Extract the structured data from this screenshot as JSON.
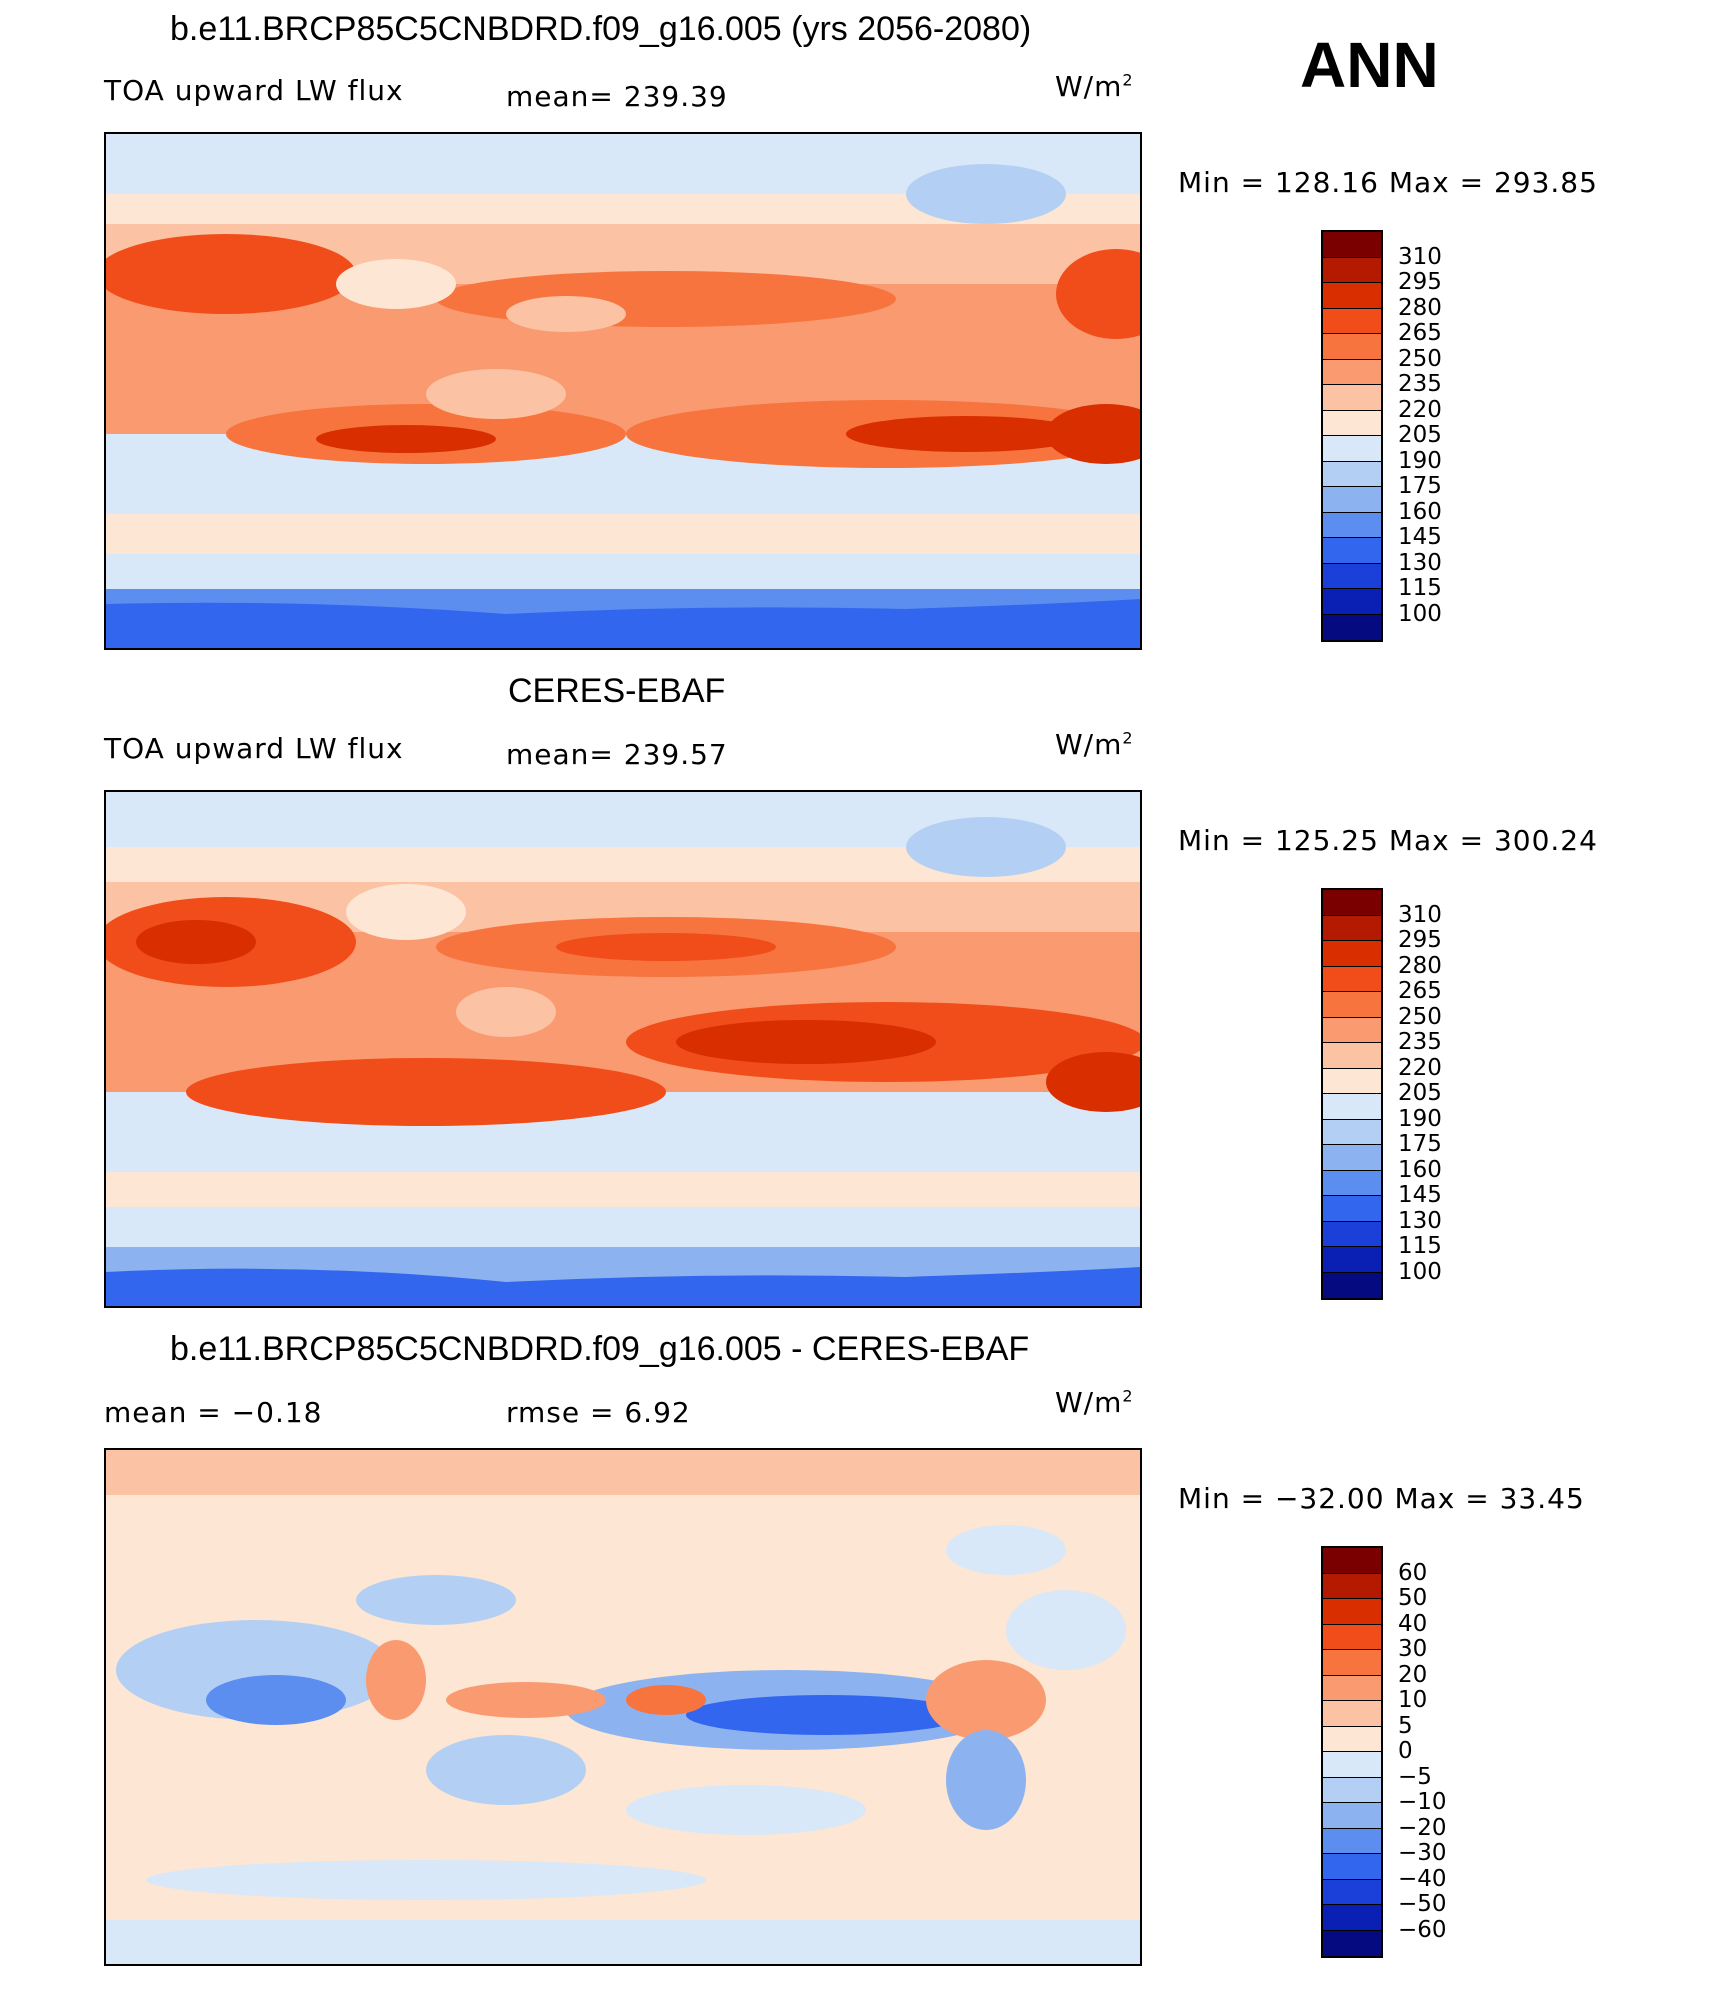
{
  "panel1": {
    "title": "b.e11.BRCP85C5CNBDRD.f09_g16.005 (yrs 2056-2080)",
    "variable": "TOA upward LW flux",
    "stat": "mean= 239.39",
    "units": "W/m",
    "units_sup": "2",
    "minmax": "Min = 128.16 Max = 293.85"
  },
  "season": "ANN",
  "panel2": {
    "title": "CERES-EBAF",
    "variable": "TOA upward LW flux",
    "stat": "mean= 239.57",
    "units": "W/m",
    "units_sup": "2",
    "minmax": "Min = 125.25 Max = 300.24"
  },
  "panel3": {
    "title": "b.e11.BRCP85C5CNBDRD.f09_g16.005 - CERES-EBAF",
    "stat_mean": "mean =   −0.18",
    "stat_rmse": "rmse =    6.92",
    "units": "W/m",
    "units_sup": "2",
    "minmax": "Min = −32.00 Max =  33.45"
  },
  "colorbar_abs": {
    "labels": [
      "310",
      "295",
      "280",
      "265",
      "250",
      "235",
      "220",
      "205",
      "190",
      "175",
      "160",
      "145",
      "130",
      "115",
      "100"
    ],
    "colors": [
      "#7a0000",
      "#b31a00",
      "#d92e00",
      "#f04d1a",
      "#f7743f",
      "#f99a70",
      "#fbc2a3",
      "#fde6d3",
      "#d8e8f8",
      "#b3d0f4",
      "#8cb3f0",
      "#5c8ef0",
      "#3366ee",
      "#1a40d9",
      "#0a1fb3",
      "#050a80"
    ]
  },
  "colorbar_diff": {
    "labels": [
      "60",
      "50",
      "40",
      "30",
      "20",
      "10",
      "5",
      "0",
      "−5",
      "−10",
      "−20",
      "−30",
      "−40",
      "−50",
      "−60"
    ],
    "colors": [
      "#7a0000",
      "#b31a00",
      "#d92e00",
      "#f04d1a",
      "#f7743f",
      "#f99a70",
      "#fbc2a3",
      "#fde6d3",
      "#d8e8f8",
      "#b3d0f4",
      "#8cb3f0",
      "#5c8ef0",
      "#3366ee",
      "#1a40d9",
      "#0a1fb3",
      "#050a80"
    ]
  }
}
